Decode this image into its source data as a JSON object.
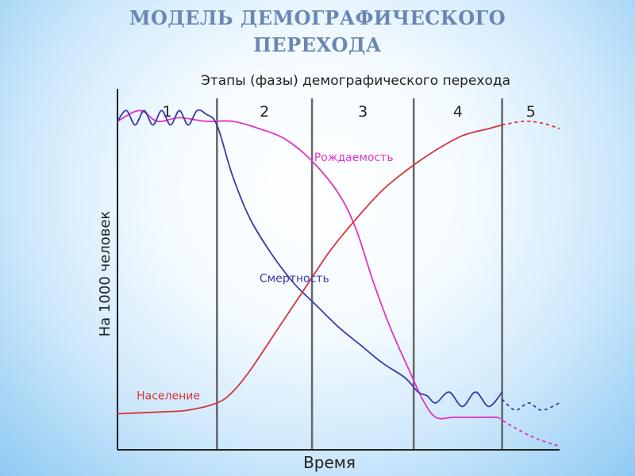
{
  "slide": {
    "title_line1": "МОДЕЛЬ ДЕМОГРАФИЧЕСКОГО",
    "title_line2": "ПЕРЕХОДА"
  },
  "chart_data": {
    "type": "line",
    "title": "Этапы (фазы) демографического перехода",
    "xlabel": "Время",
    "ylabel": "На 1000 человек",
    "xlim": [
      0,
      100
    ],
    "ylim": [
      0,
      100
    ],
    "grid": false,
    "phases": [
      {
        "label": "1",
        "start": 0,
        "end": 22.5
      },
      {
        "label": "2",
        "start": 22.5,
        "end": 44
      },
      {
        "label": "3",
        "start": 44,
        "end": 67
      },
      {
        "label": "4",
        "start": 67,
        "end": 87
      },
      {
        "label": "5",
        "start": 87,
        "end": 100
      }
    ],
    "series": [
      {
        "name": "Рождаемость",
        "color": "#e034c8",
        "values": [
          [
            0,
            91
          ],
          [
            5,
            94
          ],
          [
            9,
            91
          ],
          [
            14,
            92
          ],
          [
            20,
            91
          ],
          [
            26,
            91
          ],
          [
            32,
            89
          ],
          [
            38,
            86
          ],
          [
            44,
            80
          ],
          [
            50,
            71
          ],
          [
            54,
            61
          ],
          [
            58,
            46
          ],
          [
            62,
            33
          ],
          [
            66,
            22
          ],
          [
            69,
            14
          ],
          [
            72,
            9
          ],
          [
            76,
            9
          ],
          [
            81,
            9
          ],
          [
            86,
            9
          ]
        ],
        "projection": [
          [
            86,
            9
          ],
          [
            90,
            6
          ],
          [
            95,
            3
          ],
          [
            100,
            1
          ]
        ]
      },
      {
        "name": "Смертность",
        "color": "#3b3ba8",
        "values": [
          [
            0,
            91
          ],
          [
            2,
            94
          ],
          [
            4,
            90
          ],
          [
            6,
            94
          ],
          [
            8,
            90
          ],
          [
            10,
            94
          ],
          [
            12,
            90
          ],
          [
            14,
            94
          ],
          [
            16,
            90
          ],
          [
            18,
            94
          ],
          [
            20,
            93
          ],
          [
            22.5,
            90
          ],
          [
            26,
            76
          ],
          [
            30,
            64
          ],
          [
            35,
            54
          ],
          [
            40,
            46
          ],
          [
            45,
            40
          ],
          [
            50,
            34
          ],
          [
            55,
            29
          ],
          [
            60,
            24
          ],
          [
            65,
            20
          ],
          [
            68,
            16
          ],
          [
            70,
            15
          ],
          [
            72,
            13
          ],
          [
            75,
            16
          ],
          [
            78,
            12
          ],
          [
            81,
            16
          ],
          [
            84,
            12
          ],
          [
            87,
            16
          ]
        ],
        "projection": [
          [
            87,
            14
          ],
          [
            90,
            11
          ],
          [
            93,
            13
          ],
          [
            96,
            11
          ],
          [
            100,
            13
          ]
        ]
      },
      {
        "name": "Население",
        "color": "#d9323a",
        "values": [
          [
            0,
            10
          ],
          [
            10,
            10.5
          ],
          [
            16,
            11
          ],
          [
            22.5,
            13
          ],
          [
            26,
            16
          ],
          [
            30,
            22
          ],
          [
            36,
            33
          ],
          [
            42,
            44
          ],
          [
            48,
            55
          ],
          [
            54,
            64
          ],
          [
            60,
            72
          ],
          [
            66,
            78
          ],
          [
            72,
            83
          ],
          [
            78,
            87
          ],
          [
            84,
            89
          ],
          [
            87,
            90
          ]
        ],
        "projection": [
          [
            87,
            90
          ],
          [
            92,
            91
          ],
          [
            96,
            90.5
          ],
          [
            100,
            89
          ]
        ]
      }
    ]
  }
}
